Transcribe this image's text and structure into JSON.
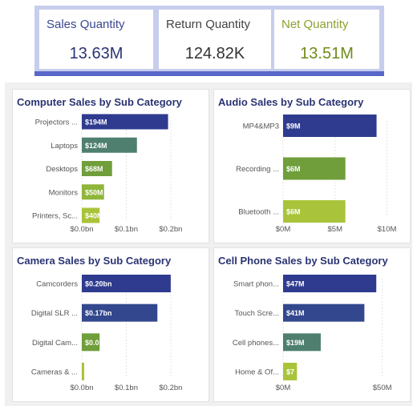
{
  "kpis": [
    {
      "label": "Sales Quantity",
      "value": "13.63M",
      "label_color": "#3b4890",
      "value_color": "#2b3473"
    },
    {
      "label": "Return Quantity",
      "value": "124.82K",
      "label_color": "#444444",
      "value_color": "#333333"
    },
    {
      "label": "Net Quantity",
      "value": "13.51M",
      "label_color": "#8aa22d",
      "value_color": "#6f8a1a"
    }
  ],
  "chart_data": [
    {
      "type": "bar",
      "orientation": "horizontal",
      "title": "Computer Sales by Sub Category",
      "categories": [
        "Projectors ...",
        "Laptops",
        "Desktops",
        "Monitors",
        "Printers, Sc..."
      ],
      "values": [
        0.194,
        0.124,
        0.068,
        0.05,
        0.04
      ],
      "data_labels": [
        "$194M",
        "$124M",
        "$68M",
        "$50M",
        "$40M"
      ],
      "colors": [
        "#2e3b8f",
        "#4e7f6f",
        "#6f9e3a",
        "#8fb53a",
        "#a9c43a"
      ],
      "xlim": [
        0,
        0.22
      ],
      "x_ticks": [
        0,
        0.1,
        0.2
      ],
      "x_tick_labels": [
        "$0.0bn",
        "$0.1bn",
        "$0.2bn"
      ],
      "grid": true
    },
    {
      "type": "bar",
      "orientation": "horizontal",
      "title": "Audio Sales by Sub Category",
      "categories": [
        "MP4&MP3",
        "Recording ...",
        "Bluetooth ..."
      ],
      "values": [
        9,
        6,
        6
      ],
      "data_labels": [
        "$9M",
        "$6M",
        "$6M"
      ],
      "colors": [
        "#2e3b8f",
        "#6f9e3a",
        "#a9c43a"
      ],
      "xlim": [
        0,
        10.5
      ],
      "x_ticks": [
        0,
        5,
        10
      ],
      "x_tick_labels": [
        "$0M",
        "$5M",
        "$10M"
      ],
      "grid": true
    },
    {
      "type": "bar",
      "orientation": "horizontal",
      "title": "Camera Sales by Sub Category",
      "categories": [
        "Camcorders",
        "Digital SLR ...",
        "Digital Cam...",
        "Cameras & ..."
      ],
      "values": [
        0.2,
        0.17,
        0.04,
        0.005
      ],
      "data_labels": [
        "$0.20bn",
        "$0.17bn",
        "$0.0",
        ""
      ],
      "colors": [
        "#2e3b8f",
        "#33478e",
        "#6f9e3a",
        "#a9c43a"
      ],
      "xlim": [
        0,
        0.22
      ],
      "x_ticks": [
        0,
        0.1,
        0.2
      ],
      "x_tick_labels": [
        "$0.0bn",
        "$0.1bn",
        "$0.2bn"
      ],
      "grid": true
    },
    {
      "type": "bar",
      "orientation": "horizontal",
      "title": "Cell Phone Sales by Sub Category",
      "categories": [
        "Smart phon...",
        "Touch Scre...",
        "Cell phones...",
        "Home & Of..."
      ],
      "values": [
        47,
        41,
        19,
        7
      ],
      "data_labels": [
        "$47M",
        "$41M",
        "$19M",
        "$7"
      ],
      "colors": [
        "#2e3b8f",
        "#33478e",
        "#4e7f6f",
        "#a9c43a"
      ],
      "xlim": [
        0,
        55
      ],
      "x_ticks": [
        0,
        50
      ],
      "x_tick_labels": [
        "$0M",
        "$50M"
      ],
      "grid": true
    }
  ]
}
